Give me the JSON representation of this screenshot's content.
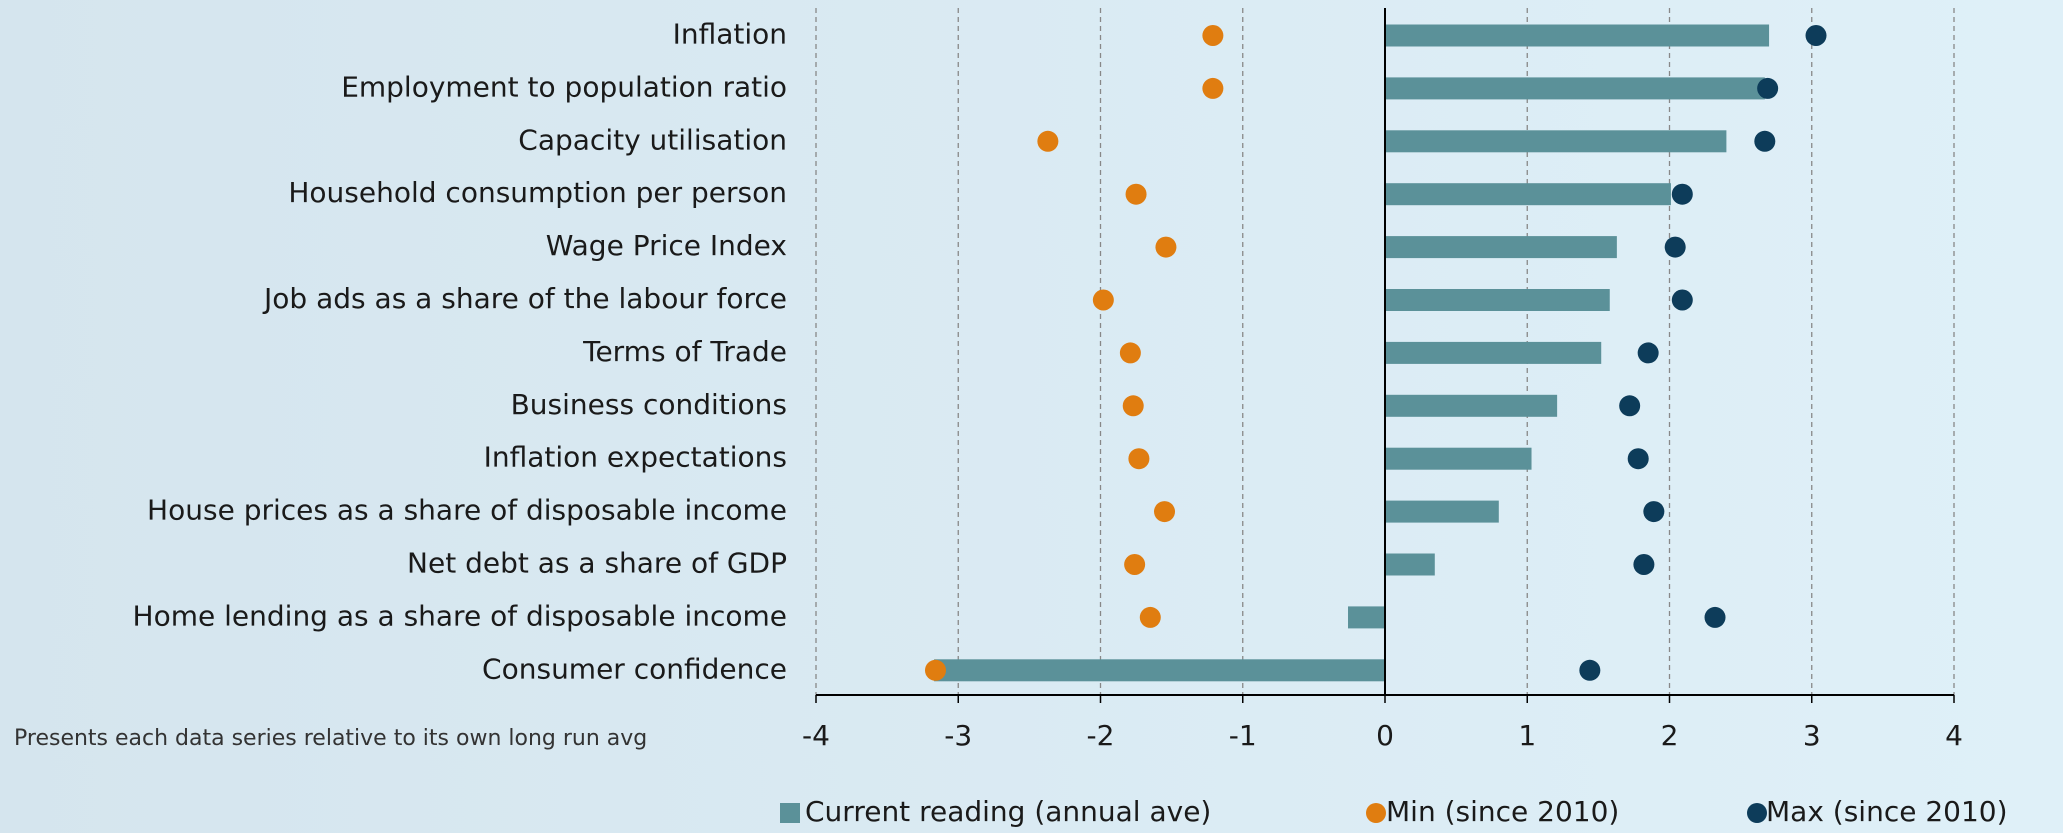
{
  "chart_data": {
    "type": "bar",
    "orientation": "horizontal",
    "categories": [
      "Inflation",
      "Employment to population ratio",
      "Capacity utilisation",
      "Household consumption per person",
      "Wage Price Index",
      "Job ads as a share of the labour force",
      "Terms of Trade",
      "Business conditions",
      "Inflation expectations",
      "House prices as a share of disposable income",
      "Net debt as a share of GDP",
      "Home lending as a share of disposable income",
      "Consumer confidence"
    ],
    "series": [
      {
        "name": "Current reading (annual ave)",
        "type": "bar",
        "color": "#5b9199",
        "values": [
          2.7,
          2.67,
          2.4,
          2.01,
          1.63,
          1.58,
          1.52,
          1.21,
          1.03,
          0.8,
          0.35,
          -0.26,
          -3.17
        ]
      },
      {
        "name": "Min (since 2010)",
        "type": "dot",
        "color": "#e07d10",
        "values": [
          -1.21,
          -1.21,
          -2.37,
          -1.75,
          -1.54,
          -1.98,
          -1.79,
          -1.77,
          -1.73,
          -1.55,
          -1.76,
          -1.65,
          -3.16
        ]
      },
      {
        "name": "Max (since 2010)",
        "type": "dot",
        "color": "#0d3c5a",
        "values": [
          3.03,
          2.69,
          2.67,
          2.09,
          2.04,
          2.09,
          1.85,
          1.72,
          1.78,
          1.89,
          1.82,
          2.32,
          1.44
        ]
      }
    ],
    "xlim": [
      -4,
      4
    ],
    "xticks": [
      -4,
      -3,
      -2,
      -1,
      0,
      1,
      2,
      3,
      4
    ],
    "grid": true,
    "annotation": "Presents each data series relative to its own long run avg",
    "legend": "bottom-right"
  }
}
